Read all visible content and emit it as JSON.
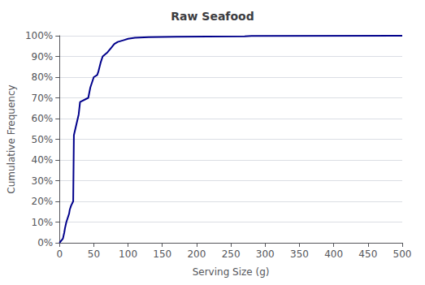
{
  "chart_data": {
    "type": "line",
    "title": "Raw Seafood",
    "xlabel": "Serving Size (g)",
    "ylabel": "Cumulative Frequency",
    "x": [
      0,
      5,
      7,
      8,
      10,
      14,
      15,
      17,
      20,
      21,
      28,
      30,
      42,
      45,
      50,
      55,
      57,
      60,
      63,
      70,
      75,
      80,
      85,
      90,
      95,
      100,
      110,
      130,
      170,
      270,
      280,
      500
    ],
    "values": [
      0.0,
      0.02,
      0.05,
      0.07,
      0.1,
      0.14,
      0.16,
      0.18,
      0.2,
      0.52,
      0.62,
      0.68,
      0.7,
      0.75,
      0.8,
      0.81,
      0.83,
      0.87,
      0.9,
      0.92,
      0.94,
      0.96,
      0.97,
      0.975,
      0.98,
      0.985,
      0.99,
      0.993,
      0.995,
      0.997,
      0.999,
      1.0
    ],
    "color": "#00008b",
    "xlim": [
      0,
      500
    ],
    "ylim": [
      0,
      1.0
    ],
    "xticks": [
      0,
      50,
      100,
      150,
      200,
      250,
      300,
      350,
      400,
      450,
      500
    ],
    "yticks": [
      {
        "value": 0.0,
        "label": "0%"
      },
      {
        "value": 0.1,
        "label": "10%"
      },
      {
        "value": 0.2,
        "label": "20%"
      },
      {
        "value": 0.3,
        "label": "30%"
      },
      {
        "value": 0.4,
        "label": "40%"
      },
      {
        "value": 0.5,
        "label": "50%"
      },
      {
        "value": 0.6,
        "label": "60%"
      },
      {
        "value": 0.7,
        "label": "70%"
      },
      {
        "value": 0.8,
        "label": "80%"
      },
      {
        "value": 0.9,
        "label": "90%"
      },
      {
        "value": 1.0,
        "label": "100%"
      }
    ],
    "grid": true
  }
}
